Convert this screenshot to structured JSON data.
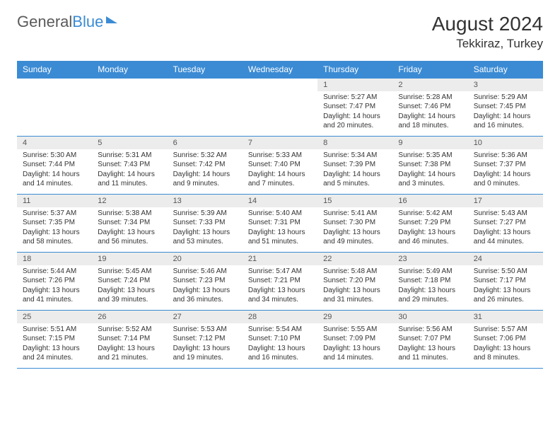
{
  "logo": {
    "text_a": "General",
    "text_b": "Blue"
  },
  "title": "August 2024",
  "location": "Tekkiraz, Turkey",
  "colors": {
    "header_bg": "#3b8bd4",
    "header_text": "#ffffff",
    "date_bg": "#ececec",
    "border": "#3b8bd4",
    "page_bg": "#ffffff",
    "body_text": "#333333"
  },
  "days": [
    "Sunday",
    "Monday",
    "Tuesday",
    "Wednesday",
    "Thursday",
    "Friday",
    "Saturday"
  ],
  "weeks": [
    {
      "dates": [
        "",
        "",
        "",
        "",
        "1",
        "2",
        "3"
      ],
      "cells": [
        null,
        null,
        null,
        null,
        {
          "sunrise": "Sunrise: 5:27 AM",
          "sunset": "Sunset: 7:47 PM",
          "daylight": "Daylight: 14 hours and 20 minutes."
        },
        {
          "sunrise": "Sunrise: 5:28 AM",
          "sunset": "Sunset: 7:46 PM",
          "daylight": "Daylight: 14 hours and 18 minutes."
        },
        {
          "sunrise": "Sunrise: 5:29 AM",
          "sunset": "Sunset: 7:45 PM",
          "daylight": "Daylight: 14 hours and 16 minutes."
        }
      ]
    },
    {
      "dates": [
        "4",
        "5",
        "6",
        "7",
        "8",
        "9",
        "10"
      ],
      "cells": [
        {
          "sunrise": "Sunrise: 5:30 AM",
          "sunset": "Sunset: 7:44 PM",
          "daylight": "Daylight: 14 hours and 14 minutes."
        },
        {
          "sunrise": "Sunrise: 5:31 AM",
          "sunset": "Sunset: 7:43 PM",
          "daylight": "Daylight: 14 hours and 11 minutes."
        },
        {
          "sunrise": "Sunrise: 5:32 AM",
          "sunset": "Sunset: 7:42 PM",
          "daylight": "Daylight: 14 hours and 9 minutes."
        },
        {
          "sunrise": "Sunrise: 5:33 AM",
          "sunset": "Sunset: 7:40 PM",
          "daylight": "Daylight: 14 hours and 7 minutes."
        },
        {
          "sunrise": "Sunrise: 5:34 AM",
          "sunset": "Sunset: 7:39 PM",
          "daylight": "Daylight: 14 hours and 5 minutes."
        },
        {
          "sunrise": "Sunrise: 5:35 AM",
          "sunset": "Sunset: 7:38 PM",
          "daylight": "Daylight: 14 hours and 3 minutes."
        },
        {
          "sunrise": "Sunrise: 5:36 AM",
          "sunset": "Sunset: 7:37 PM",
          "daylight": "Daylight: 14 hours and 0 minutes."
        }
      ]
    },
    {
      "dates": [
        "11",
        "12",
        "13",
        "14",
        "15",
        "16",
        "17"
      ],
      "cells": [
        {
          "sunrise": "Sunrise: 5:37 AM",
          "sunset": "Sunset: 7:35 PM",
          "daylight": "Daylight: 13 hours and 58 minutes."
        },
        {
          "sunrise": "Sunrise: 5:38 AM",
          "sunset": "Sunset: 7:34 PM",
          "daylight": "Daylight: 13 hours and 56 minutes."
        },
        {
          "sunrise": "Sunrise: 5:39 AM",
          "sunset": "Sunset: 7:33 PM",
          "daylight": "Daylight: 13 hours and 53 minutes."
        },
        {
          "sunrise": "Sunrise: 5:40 AM",
          "sunset": "Sunset: 7:31 PM",
          "daylight": "Daylight: 13 hours and 51 minutes."
        },
        {
          "sunrise": "Sunrise: 5:41 AM",
          "sunset": "Sunset: 7:30 PM",
          "daylight": "Daylight: 13 hours and 49 minutes."
        },
        {
          "sunrise": "Sunrise: 5:42 AM",
          "sunset": "Sunset: 7:29 PM",
          "daylight": "Daylight: 13 hours and 46 minutes."
        },
        {
          "sunrise": "Sunrise: 5:43 AM",
          "sunset": "Sunset: 7:27 PM",
          "daylight": "Daylight: 13 hours and 44 minutes."
        }
      ]
    },
    {
      "dates": [
        "18",
        "19",
        "20",
        "21",
        "22",
        "23",
        "24"
      ],
      "cells": [
        {
          "sunrise": "Sunrise: 5:44 AM",
          "sunset": "Sunset: 7:26 PM",
          "daylight": "Daylight: 13 hours and 41 minutes."
        },
        {
          "sunrise": "Sunrise: 5:45 AM",
          "sunset": "Sunset: 7:24 PM",
          "daylight": "Daylight: 13 hours and 39 minutes."
        },
        {
          "sunrise": "Sunrise: 5:46 AM",
          "sunset": "Sunset: 7:23 PM",
          "daylight": "Daylight: 13 hours and 36 minutes."
        },
        {
          "sunrise": "Sunrise: 5:47 AM",
          "sunset": "Sunset: 7:21 PM",
          "daylight": "Daylight: 13 hours and 34 minutes."
        },
        {
          "sunrise": "Sunrise: 5:48 AM",
          "sunset": "Sunset: 7:20 PM",
          "daylight": "Daylight: 13 hours and 31 minutes."
        },
        {
          "sunrise": "Sunrise: 5:49 AM",
          "sunset": "Sunset: 7:18 PM",
          "daylight": "Daylight: 13 hours and 29 minutes."
        },
        {
          "sunrise": "Sunrise: 5:50 AM",
          "sunset": "Sunset: 7:17 PM",
          "daylight": "Daylight: 13 hours and 26 minutes."
        }
      ]
    },
    {
      "dates": [
        "25",
        "26",
        "27",
        "28",
        "29",
        "30",
        "31"
      ],
      "cells": [
        {
          "sunrise": "Sunrise: 5:51 AM",
          "sunset": "Sunset: 7:15 PM",
          "daylight": "Daylight: 13 hours and 24 minutes."
        },
        {
          "sunrise": "Sunrise: 5:52 AM",
          "sunset": "Sunset: 7:14 PM",
          "daylight": "Daylight: 13 hours and 21 minutes."
        },
        {
          "sunrise": "Sunrise: 5:53 AM",
          "sunset": "Sunset: 7:12 PM",
          "daylight": "Daylight: 13 hours and 19 minutes."
        },
        {
          "sunrise": "Sunrise: 5:54 AM",
          "sunset": "Sunset: 7:10 PM",
          "daylight": "Daylight: 13 hours and 16 minutes."
        },
        {
          "sunrise": "Sunrise: 5:55 AM",
          "sunset": "Sunset: 7:09 PM",
          "daylight": "Daylight: 13 hours and 14 minutes."
        },
        {
          "sunrise": "Sunrise: 5:56 AM",
          "sunset": "Sunset: 7:07 PM",
          "daylight": "Daylight: 13 hours and 11 minutes."
        },
        {
          "sunrise": "Sunrise: 5:57 AM",
          "sunset": "Sunset: 7:06 PM",
          "daylight": "Daylight: 13 hours and 8 minutes."
        }
      ]
    }
  ]
}
